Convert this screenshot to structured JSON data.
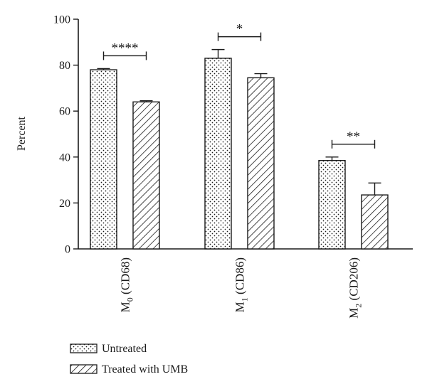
{
  "chart_data": {
    "type": "bar",
    "title": "",
    "ylabel": "Percent",
    "xlabel": "",
    "ylim": [
      0,
      100
    ],
    "yticks": [
      "0",
      "20",
      "40",
      "60",
      "80",
      "100"
    ],
    "categories": [
      {
        "base": "M",
        "sub": "0",
        "rest": " (CD68)"
      },
      {
        "base": "M",
        "sub": "1",
        "rest": " (CD86)"
      },
      {
        "base": "M",
        "sub": "2",
        "rest": " (CD206)"
      }
    ],
    "series": [
      {
        "name": "Untreated",
        "pattern": "dots",
        "values": [
          78,
          83,
          38.5
        ],
        "errors": [
          0.5,
          3.8,
          1.5
        ]
      },
      {
        "name": "Treated with UMB",
        "pattern": "hatch",
        "values": [
          64,
          74.5,
          23.5
        ],
        "errors": [
          0.5,
          1.8,
          5.2
        ]
      }
    ],
    "significance": [
      "****",
      "*",
      "**"
    ],
    "legend_position": "bottom-left",
    "colors": {
      "stroke": "#1a1a1a",
      "fill": "#ffffff"
    }
  }
}
